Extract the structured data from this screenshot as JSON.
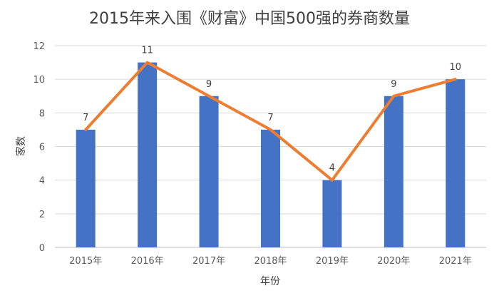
{
  "chart_data": {
    "type": "bar",
    "title": "2015年来入围《财富》中国500强的券商数量",
    "xlabel": "年份",
    "ylabel": "家数",
    "categories": [
      "2015年",
      "2016年",
      "2017年",
      "2018年",
      "2019年",
      "2020年",
      "2021年"
    ],
    "values": [
      7,
      11,
      9,
      7,
      4,
      9,
      10
    ],
    "ylim": [
      0,
      12
    ],
    "yticks": [
      "0",
      "2",
      "4",
      "6",
      "8",
      "10",
      "12"
    ],
    "data_labels": [
      "7",
      "11",
      "9",
      "7",
      "4",
      "9",
      "10"
    ],
    "overlay_line": true,
    "grid": true,
    "colors": {
      "bar": "#4472C4",
      "line": "#ED7D31"
    }
  }
}
